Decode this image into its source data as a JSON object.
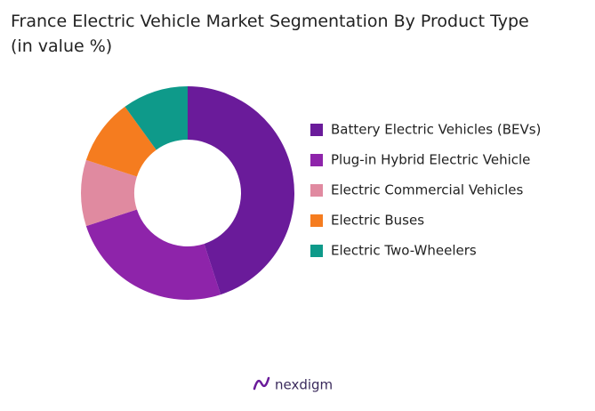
{
  "chart_data": {
    "type": "donut",
    "title": "France Electric Vehicle Market Segmentation By Product Type (in value %)",
    "categories": [
      "Battery Electric Vehicles (BEVs)",
      "Plug-in Hybrid Electric Vehicle",
      "Electric Commercial Vehicles",
      "Electric Buses",
      "Electric Two-Wheelers"
    ],
    "values": [
      45,
      25,
      10,
      10,
      10
    ],
    "colors": [
      "#6a1b9a",
      "#8e24aa",
      "#e08aa0",
      "#f57c1f",
      "#0e9a8a"
    ],
    "legend": "right",
    "brand": "nexdigm"
  }
}
